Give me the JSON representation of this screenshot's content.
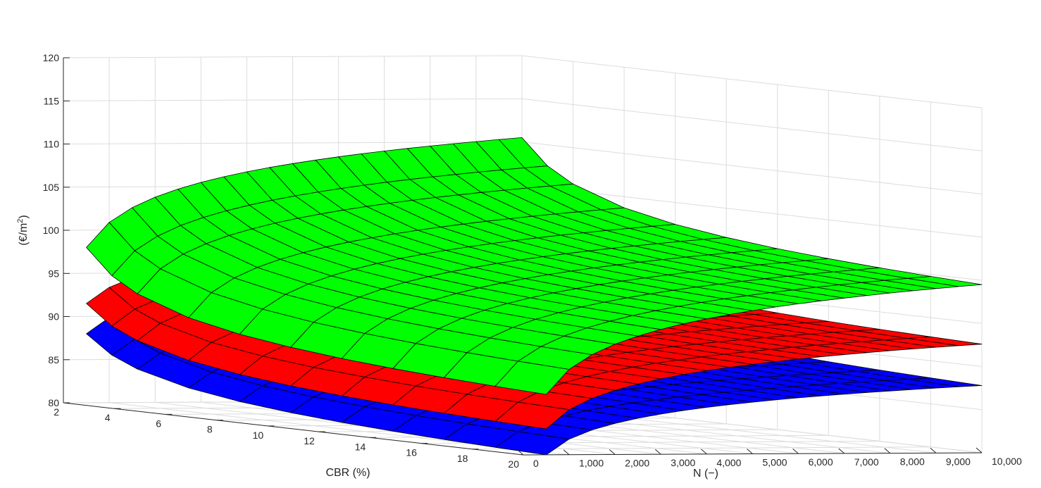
{
  "chart_data": {
    "type": "surface3d",
    "xlabel": "CBR (%)",
    "ylabel": "N (−)",
    "zlabel": "(€/m²)",
    "xlim": [
      2,
      20
    ],
    "ylim": [
      0,
      10000
    ],
    "zlim": [
      80,
      120
    ],
    "grid": true,
    "x_ticks": [
      2,
      4,
      6,
      8,
      10,
      12,
      14,
      16,
      18,
      20
    ],
    "x_tick_labels": [
      "2",
      "4",
      "6",
      "8",
      "10",
      "12",
      "14",
      "16",
      "18",
      "20"
    ],
    "y_ticks": [
      0,
      1000,
      2000,
      3000,
      4000,
      5000,
      6000,
      7000,
      8000,
      9000,
      10000
    ],
    "y_tick_labels": [
      "0",
      "1,000",
      "2,000",
      "3,000",
      "4,000",
      "5,000",
      "6,000",
      "7,000",
      "8,000",
      "9,000",
      "10,000"
    ],
    "z_ticks": [
      80,
      85,
      90,
      95,
      100,
      105,
      110,
      115,
      120
    ],
    "z_tick_labels": [
      "80",
      "85",
      "90",
      "95",
      "100",
      "105",
      "110",
      "115",
      "120"
    ],
    "grid_cbr": [
      2,
      3,
      4,
      6,
      8,
      10,
      12,
      14,
      16,
      18,
      20
    ],
    "grid_n": [
      500,
      1000,
      1500,
      2000,
      2500,
      3000,
      3500,
      4000,
      4500,
      5000,
      5500,
      6000,
      6500,
      7000,
      7500,
      8000,
      8500,
      9000,
      9500,
      10000
    ],
    "series": [
      {
        "color": "#0000ff",
        "corners": {
          "cbr2_n500": 88.0,
          "cbr20_n500": 80.0,
          "cbr20_n10000": 87.8,
          "cbr2_n10000": 96.0
        }
      },
      {
        "color": "#ff0000",
        "corners": {
          "cbr2_n500": 91.5,
          "cbr20_n500": 83.0,
          "cbr20_n10000": 92.6,
          "cbr2_n10000": 99.5
        }
      },
      {
        "color": "#00ff00",
        "corners": {
          "cbr2_n500": 98.0,
          "cbr20_n500": 87.0,
          "cbr20_n10000": 99.5,
          "cbr2_n10000": 110.5
        }
      }
    ]
  }
}
